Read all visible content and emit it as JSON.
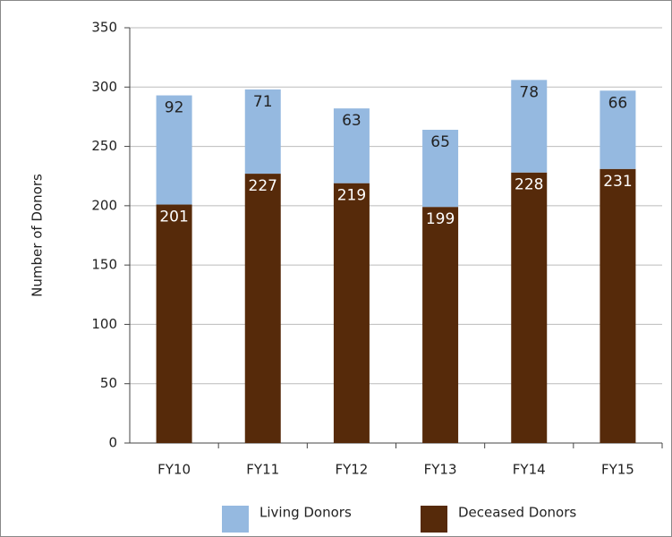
{
  "chart_data": {
    "type": "stacked_bar",
    "y_label": "Number of Donors",
    "categories": [
      "FY10",
      "FY11",
      "FY12",
      "FY13",
      "FY14",
      "FY15"
    ],
    "series": [
      {
        "name": "Living Donors",
        "color": "#95b9e0",
        "values": [
          92,
          71,
          63,
          65,
          78,
          66
        ]
      },
      {
        "name": "Deceased Donors",
        "color": "#562a0a",
        "values": [
          201,
          227,
          219,
          199,
          228,
          231
        ]
      }
    ],
    "ylim": [
      0,
      350
    ],
    "yticks": [
      0,
      50,
      100,
      150,
      200,
      250,
      300,
      350
    ],
    "grid": true,
    "legend": "bottom"
  }
}
